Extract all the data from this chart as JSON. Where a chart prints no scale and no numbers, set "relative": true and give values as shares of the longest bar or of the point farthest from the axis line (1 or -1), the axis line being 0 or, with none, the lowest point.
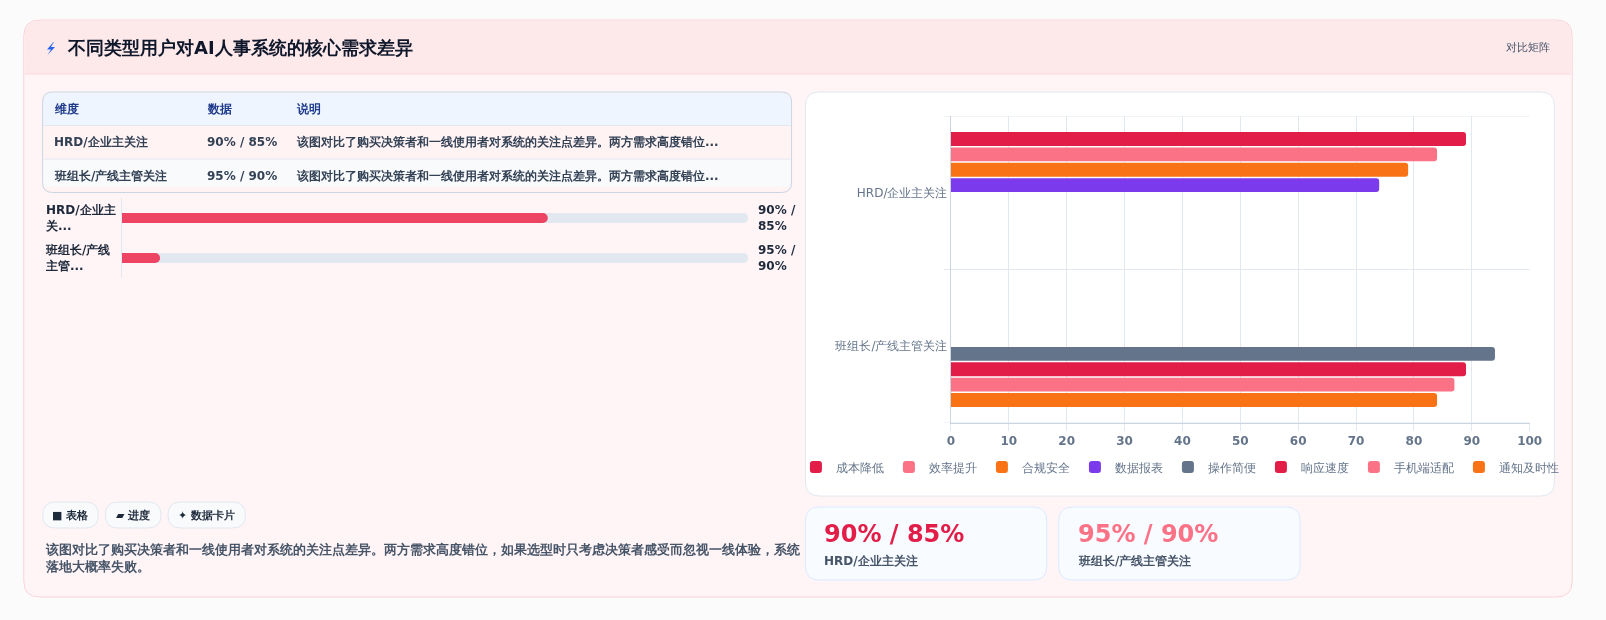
{
  "chart_data": [
    {
      "type": "other",
      "title": "不同类型用户对AI人事系统的核心需求差异",
      "subtitle": "对比矩阵",
      "annotations": [
        "维度",
        "数据",
        "说明",
        "HRD/企业主关注",
        "90% / 85%",
        "该图对比了购买决策者和一线使用者对系统的关注点差异。两方需求高度错位...",
        "班组长/产线主管关注",
        "95% / 90%",
        "该图对比了购买决策者和一线使用者对系统的关注点差异。两方需求高度错位..."
      ]
    },
    {
      "type": "bar",
      "orientation": "horizontal",
      "relative": true,
      "categories": [
        "HRD/企业主关...",
        "班组长/产线主管..."
      ],
      "values": [
        1,
        0.09
      ],
      "color": "#ec4462",
      "annotations": [
        "90% / 85%",
        "95% / 90%"
      ]
    },
    {
      "type": "other",
      "annotations": [
        "■ 表格",
        "▰ 进度",
        "✦ 数据卡片",
        "该图对比了购买决策者和一线使用者对系统的关注点差异。两方需求高度错位，如果选型时只考虑决策者感受而忽视一线体验，系统落地大概率失败。"
      ]
    },
    {
      "type": "bar",
      "orientation": "horizontal",
      "categories": [
        "HRD/企业主关注",
        "班组长/产线主管关注"
      ],
      "series": [
        {
          "name": "成本降低",
          "color": "#e11d48",
          "values": [
            89,
            null
          ]
        },
        {
          "name": "效率提升",
          "color": "#fb7185",
          "values": [
            84,
            null
          ]
        },
        {
          "name": "合规安全",
          "color": "#f97316",
          "values": [
            79,
            null
          ]
        },
        {
          "name": "数据报表",
          "color": "#7c3aed",
          "values": [
            74,
            null
          ]
        },
        {
          "name": "操作简便",
          "color": "#64748b",
          "values": [
            null,
            94
          ]
        },
        {
          "name": "响应速度",
          "color": "#e11d48",
          "values": [
            null,
            89
          ]
        },
        {
          "name": "手机端适配",
          "color": "#fb7185",
          "values": [
            null,
            87
          ]
        },
        {
          "name": "通知及时性",
          "color": "#f97316",
          "values": [
            null,
            84
          ]
        }
      ],
      "xlim": [
        0,
        100
      ],
      "xticks": [
        0,
        10,
        20,
        30,
        40,
        50,
        60,
        70,
        80,
        90,
        100
      ],
      "grid": true,
      "legend": "bottom"
    },
    {
      "type": "other",
      "annotations": [
        "90% / 85%",
        "HRD/企业主关注",
        "95% / 90%",
        "班组长/产线主管关注"
      ],
      "colors": [
        "#e11d48",
        "#fb7185"
      ]
    }
  ]
}
